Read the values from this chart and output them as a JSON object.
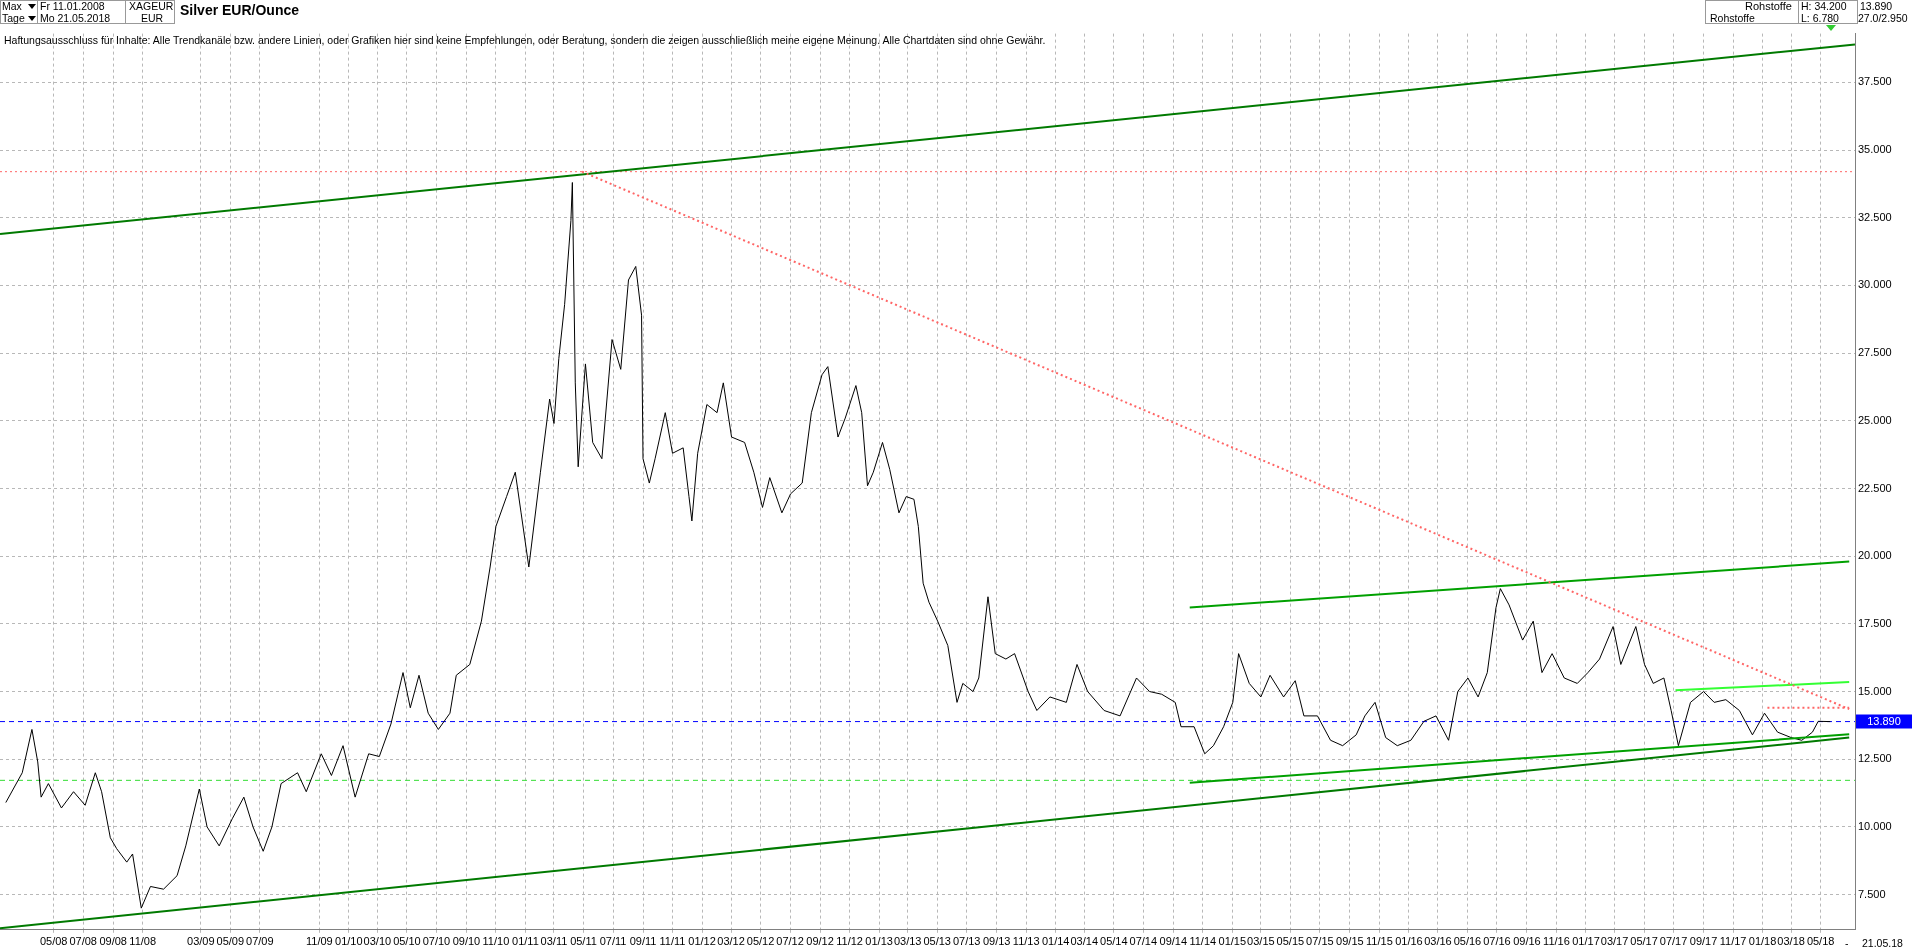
{
  "chart_data": {
    "type": "line",
    "title": "Silver EUR/Ounce",
    "annotations": [
      "Max",
      "Tage",
      "Fr 11.01.2008",
      "Mo 21.05.2018",
      "XAGEUR",
      "EUR",
      "Rohstoffe",
      "Rohstoffe",
      "H: 34.200",
      "L: 6.780",
      "13.890",
      "27.0/2.950",
      "Haftungsausschluss für Inhalte: Alle Trendkanäle bzw. andere Linien, oder Grafiken hier sind keine Empfehlungen, oder Beratung, sondern die zeigen ausschließlich meine eigene Meinung. Alle Chartdaten sind ohne Gewähr.",
      "-",
      "21.05.18"
    ],
    "xlim": [
      "2008-01-11",
      "2018-07-11"
    ],
    "ylim": [
      6.2,
      39.3
    ],
    "xticks": [
      {
        "value": "2008-05",
        "label": "05/08"
      },
      {
        "value": "2008-07",
        "label": "07/08"
      },
      {
        "value": "2008-09",
        "label": "09/08"
      },
      {
        "value": "2008-11",
        "label": "11/08"
      },
      {
        "value": "2009-03",
        "label": "03/09"
      },
      {
        "value": "2009-05",
        "label": "05/09"
      },
      {
        "value": "2009-07",
        "label": "07/09"
      },
      {
        "value": "2009-11",
        "label": "11/09"
      },
      {
        "value": "2010-01",
        "label": "01/10"
      },
      {
        "value": "2010-03",
        "label": "03/10"
      },
      {
        "value": "2010-05",
        "label": "05/10"
      },
      {
        "value": "2010-07",
        "label": "07/10"
      },
      {
        "value": "2010-09",
        "label": "09/10"
      },
      {
        "value": "2010-11",
        "label": "11/10"
      },
      {
        "value": "2011-01",
        "label": "01/11"
      },
      {
        "value": "2011-03",
        "label": "03/11"
      },
      {
        "value": "2011-05",
        "label": "05/11"
      },
      {
        "value": "2011-07",
        "label": "07/11"
      },
      {
        "value": "2011-09",
        "label": "09/11"
      },
      {
        "value": "2011-11",
        "label": "11/11"
      },
      {
        "value": "2012-01",
        "label": "01/12"
      },
      {
        "value": "2012-03",
        "label": "03/12"
      },
      {
        "value": "2012-05",
        "label": "05/12"
      },
      {
        "value": "2012-07",
        "label": "07/12"
      },
      {
        "value": "2012-09",
        "label": "09/12"
      },
      {
        "value": "2012-11",
        "label": "11/12"
      },
      {
        "value": "2013-01",
        "label": "01/13"
      },
      {
        "value": "2013-03",
        "label": "03/13"
      },
      {
        "value": "2013-05",
        "label": "05/13"
      },
      {
        "value": "2013-07",
        "label": "07/13"
      },
      {
        "value": "2013-09",
        "label": "09/13"
      },
      {
        "value": "2013-11",
        "label": "11/13"
      },
      {
        "value": "2014-01",
        "label": "01/14"
      },
      {
        "value": "2014-03",
        "label": "03/14"
      },
      {
        "value": "2014-05",
        "label": "05/14"
      },
      {
        "value": "2014-07",
        "label": "07/14"
      },
      {
        "value": "2014-09",
        "label": "09/14"
      },
      {
        "value": "2014-11",
        "label": "11/14"
      },
      {
        "value": "2015-01",
        "label": "01/15"
      },
      {
        "value": "2015-03",
        "label": "03/15"
      },
      {
        "value": "2015-05",
        "label": "05/15"
      },
      {
        "value": "2015-07",
        "label": "07/15"
      },
      {
        "value": "2015-09",
        "label": "09/15"
      },
      {
        "value": "2015-11",
        "label": "11/15"
      },
      {
        "value": "2016-01",
        "label": "01/16"
      },
      {
        "value": "2016-03",
        "label": "03/16"
      },
      {
        "value": "2016-05",
        "label": "05/16"
      },
      {
        "value": "2016-07",
        "label": "07/16"
      },
      {
        "value": "2016-09",
        "label": "09/16"
      },
      {
        "value": "2016-11",
        "label": "11/16"
      },
      {
        "value": "2017-01",
        "label": "01/17"
      },
      {
        "value": "2017-03",
        "label": "03/17"
      },
      {
        "value": "2017-05",
        "label": "05/17"
      },
      {
        "value": "2017-07",
        "label": "07/17"
      },
      {
        "value": "2017-09",
        "label": "09/17"
      },
      {
        "value": "2017-11",
        "label": "11/17"
      },
      {
        "value": "2018-01",
        "label": "01/18"
      },
      {
        "value": "2018-03",
        "label": "03/18"
      },
      {
        "value": "2018-05",
        "label": "05/18"
      }
    ],
    "yticks": [
      {
        "value": 7.5,
        "label": "7.500"
      },
      {
        "value": 10,
        "label": "10.000"
      },
      {
        "value": 12.5,
        "label": "12.500"
      },
      {
        "value": 15,
        "label": "15.000"
      },
      {
        "value": 17.5,
        "label": "17.500"
      },
      {
        "value": 20,
        "label": "20.000"
      },
      {
        "value": 22.5,
        "label": "22.500"
      },
      {
        "value": 25,
        "label": "25.000"
      },
      {
        "value": 27.5,
        "label": "27.500"
      },
      {
        "value": 30,
        "label": "30.000"
      },
      {
        "value": 32.5,
        "label": "32.500"
      },
      {
        "value": 35,
        "label": "35.000"
      },
      {
        "value": 37.5,
        "label": "37.500"
      }
    ],
    "grid": true,
    "legend": false,
    "marker": "none",
    "series": [
      {
        "type": "line",
        "color": "#000000",
        "x": [
          "2008-01-23",
          "2008-02-26",
          "2008-03-17",
          "2008-03-29",
          "2008-04-05",
          "2008-04-20",
          "2008-05-17",
          "2008-06-11",
          "2008-07-05",
          "2008-07-26",
          "2008-08-08",
          "2008-08-26",
          "2008-09-08",
          "2008-09-29",
          "2008-10-11",
          "2008-10-29",
          "2008-11-17",
          "2008-12-14",
          "2009-01-11",
          "2009-01-29",
          "2009-02-26",
          "2009-03-14",
          "2009-04-08",
          "2009-05-05",
          "2009-05-29",
          "2009-06-17",
          "2009-07-08",
          "2009-07-26",
          "2009-08-14",
          "2009-09-17",
          "2009-10-05",
          "2009-11-05",
          "2009-11-26",
          "2009-12-20",
          "2010-01-14",
          "2010-02-11",
          "2010-03-05",
          "2010-03-29",
          "2010-04-23",
          "2010-05-08",
          "2010-05-26",
          "2010-06-14",
          "2010-07-05",
          "2010-07-29",
          "2010-08-11",
          "2010-09-08",
          "2010-10-02",
          "2010-10-20",
          "2010-11-01",
          "2010-11-23",
          "2010-12-11",
          "2010-12-23",
          "2011-01-08",
          "2011-02-01",
          "2011-02-20",
          "2011-03-01",
          "2011-03-11",
          "2011-03-23",
          "2011-04-05",
          "2011-04-08",
          "2011-04-14",
          "2011-04-20",
          "2011-05-05",
          "2011-05-20",
          "2011-06-08",
          "2011-06-29",
          "2011-07-17",
          "2011-08-02",
          "2011-08-17",
          "2011-08-29",
          "2011-09-01",
          "2011-09-14",
          "2011-09-26",
          "2011-10-17",
          "2011-11-01",
          "2011-11-23",
          "2011-12-05",
          "2011-12-11",
          "2011-12-23",
          "2012-01-11",
          "2012-02-01",
          "2012-02-14",
          "2012-03-02",
          "2012-03-29",
          "2012-04-17",
          "2012-05-05",
          "2012-05-20",
          "2012-06-14",
          "2012-07-02",
          "2012-07-26",
          "2012-08-14",
          "2012-09-05",
          "2012-09-17",
          "2012-10-08",
          "2012-10-23",
          "2012-11-14",
          "2012-11-26",
          "2012-12-08",
          "2012-12-20",
          "2013-01-08",
          "2013-01-23",
          "2013-02-11",
          "2013-02-26",
          "2013-03-14",
          "2013-03-23",
          "2013-04-02",
          "2013-04-14",
          "2013-05-02",
          "2013-05-23",
          "2013-06-11",
          "2013-06-23",
          "2013-07-14",
          "2013-07-26",
          "2013-08-14",
          "2013-08-29",
          "2013-09-20",
          "2013-10-08",
          "2013-11-05",
          "2013-11-23",
          "2013-12-20",
          "2014-01-23",
          "2014-02-14",
          "2014-03-08",
          "2014-04-11",
          "2014-05-14",
          "2014-06-17",
          "2014-07-14",
          "2014-08-08",
          "2014-09-05",
          "2014-09-17",
          "2014-10-14",
          "2014-11-05",
          "2014-11-23",
          "2014-12-14",
          "2015-01-02",
          "2015-01-14",
          "2015-02-05",
          "2015-03-01",
          "2015-03-20",
          "2015-04-17",
          "2015-05-11",
          "2015-05-29",
          "2015-06-26",
          "2015-07-23",
          "2015-08-17",
          "2015-09-14",
          "2015-10-02",
          "2015-10-23",
          "2015-11-14",
          "2015-12-08",
          "2016-01-05",
          "2016-02-01",
          "2016-02-26",
          "2016-03-23",
          "2016-04-11",
          "2016-05-02",
          "2016-05-23",
          "2016-06-11",
          "2016-06-29",
          "2016-07-08",
          "2016-07-26",
          "2016-08-23",
          "2016-09-14",
          "2016-10-02",
          "2016-10-23",
          "2016-11-17",
          "2016-12-14",
          "2017-01-05",
          "2017-01-29",
          "2017-02-26",
          "2017-03-14",
          "2017-04-14",
          "2017-05-02",
          "2017-05-20",
          "2017-06-11",
          "2017-06-26",
          "2017-07-11",
          "2017-08-05",
          "2017-09-01",
          "2017-09-23",
          "2017-10-17",
          "2017-11-14",
          "2017-12-11",
          "2018-01-05",
          "2018-02-01",
          "2018-03-01",
          "2018-03-23",
          "2018-04-14",
          "2018-04-26",
          "2018-05-21"
        ],
        "values": [
          10.9,
          12.0,
          13.6,
          12.4,
          11.1,
          11.6,
          10.7,
          11.3,
          10.8,
          12.0,
          11.3,
          9.6,
          9.2,
          8.7,
          9.0,
          7.0,
          7.8,
          7.7,
          8.2,
          9.3,
          11.4,
          10.0,
          9.3,
          10.3,
          11.1,
          10.0,
          9.1,
          10.0,
          11.6,
          12.0,
          11.3,
          12.7,
          11.9,
          13.0,
          11.1,
          12.7,
          12.6,
          13.8,
          15.7,
          14.4,
          15.6,
          14.2,
          13.6,
          14.2,
          15.6,
          16.0,
          17.6,
          19.6,
          21.1,
          22.2,
          23.1,
          21.6,
          19.6,
          23.1,
          25.8,
          24.9,
          27.3,
          29.3,
          32.4,
          33.8,
          26.4,
          23.3,
          27.1,
          24.2,
          23.6,
          28.0,
          26.9,
          30.2,
          30.7,
          28.9,
          23.6,
          22.7,
          23.6,
          25.3,
          23.8,
          24.0,
          22.2,
          21.3,
          23.8,
          25.6,
          25.3,
          26.4,
          24.4,
          24.2,
          23.1,
          21.8,
          22.9,
          21.6,
          22.3,
          22.7,
          25.3,
          26.7,
          27.0,
          24.4,
          25.1,
          26.3,
          25.3,
          22.6,
          23.1,
          24.2,
          23.2,
          21.6,
          22.2,
          22.1,
          21.1,
          19.0,
          18.3,
          17.6,
          16.7,
          14.6,
          15.3,
          15.0,
          15.5,
          18.5,
          16.4,
          16.2,
          16.4,
          15.0,
          14.3,
          14.8,
          14.6,
          16.0,
          15.0,
          14.3,
          14.1,
          15.5,
          15.0,
          14.9,
          14.6,
          13.7,
          13.7,
          12.7,
          13.0,
          13.7,
          14.6,
          16.4,
          15.3,
          14.8,
          15.6,
          14.8,
          15.4,
          14.1,
          14.1,
          13.2,
          13.0,
          13.4,
          14.1,
          14.6,
          13.3,
          13.0,
          13.2,
          13.9,
          14.1,
          13.2,
          15.0,
          15.5,
          14.8,
          15.7,
          18.1,
          18.8,
          18.2,
          16.9,
          17.6,
          15.7,
          16.4,
          15.5,
          15.3,
          15.7,
          16.2,
          17.4,
          16.0,
          17.4,
          16.0,
          15.3,
          15.5,
          14.3,
          13.0,
          14.6,
          15.0,
          14.6,
          14.7,
          14.3,
          13.4,
          14.2,
          13.5,
          13.3,
          13.2,
          13.5,
          13.9,
          13.89
        ]
      },
      {
        "type": "line",
        "color": "#007a00",
        "x": [
          "2008-01-11",
          "2018-07-11"
        ],
        "values": [
          31.9,
          38.9
        ]
      },
      {
        "type": "line",
        "color": "#007a00",
        "x": [
          "2008-01-11",
          "2018-06-29"
        ],
        "values": [
          6.26,
          13.3
        ]
      },
      {
        "type": "line",
        "color": "#00a000",
        "x": [
          "2014-10-05",
          "2018-06-29"
        ],
        "values": [
          18.1,
          19.8
        ]
      },
      {
        "type": "line",
        "color": "#00a000",
        "x": [
          "2014-10-05",
          "2018-06-29"
        ],
        "values": [
          11.63,
          13.42
        ]
      },
      {
        "type": "line",
        "color": "#33ff33",
        "x": [
          "2017-07-05",
          "2018-06-29"
        ],
        "values": [
          15.05,
          15.35
        ]
      },
      {
        "type": "line",
        "color": "#ff6666",
        "line_style": "dotted",
        "x": [
          "2011-04-28",
          "2018-06-29"
        ],
        "values": [
          34.2,
          14.35
        ]
      },
      {
        "type": "line",
        "color": "#ff6666",
        "line_style": "dotted",
        "x": [
          "2018-01-11",
          "2018-06-29"
        ],
        "values": [
          14.4,
          14.4
        ]
      }
    ],
    "ref_lines": [
      {
        "axis": "y",
        "value": 34.2,
        "color": "#ff6666",
        "line_style": "dotted"
      },
      {
        "axis": "y",
        "value": 13.89,
        "label": "13.890",
        "color": "#0000ff",
        "line_style": "dashed"
      },
      {
        "axis": "y",
        "value": 11.72,
        "color": "#33dd33",
        "line_style": "dashed"
      }
    ]
  }
}
